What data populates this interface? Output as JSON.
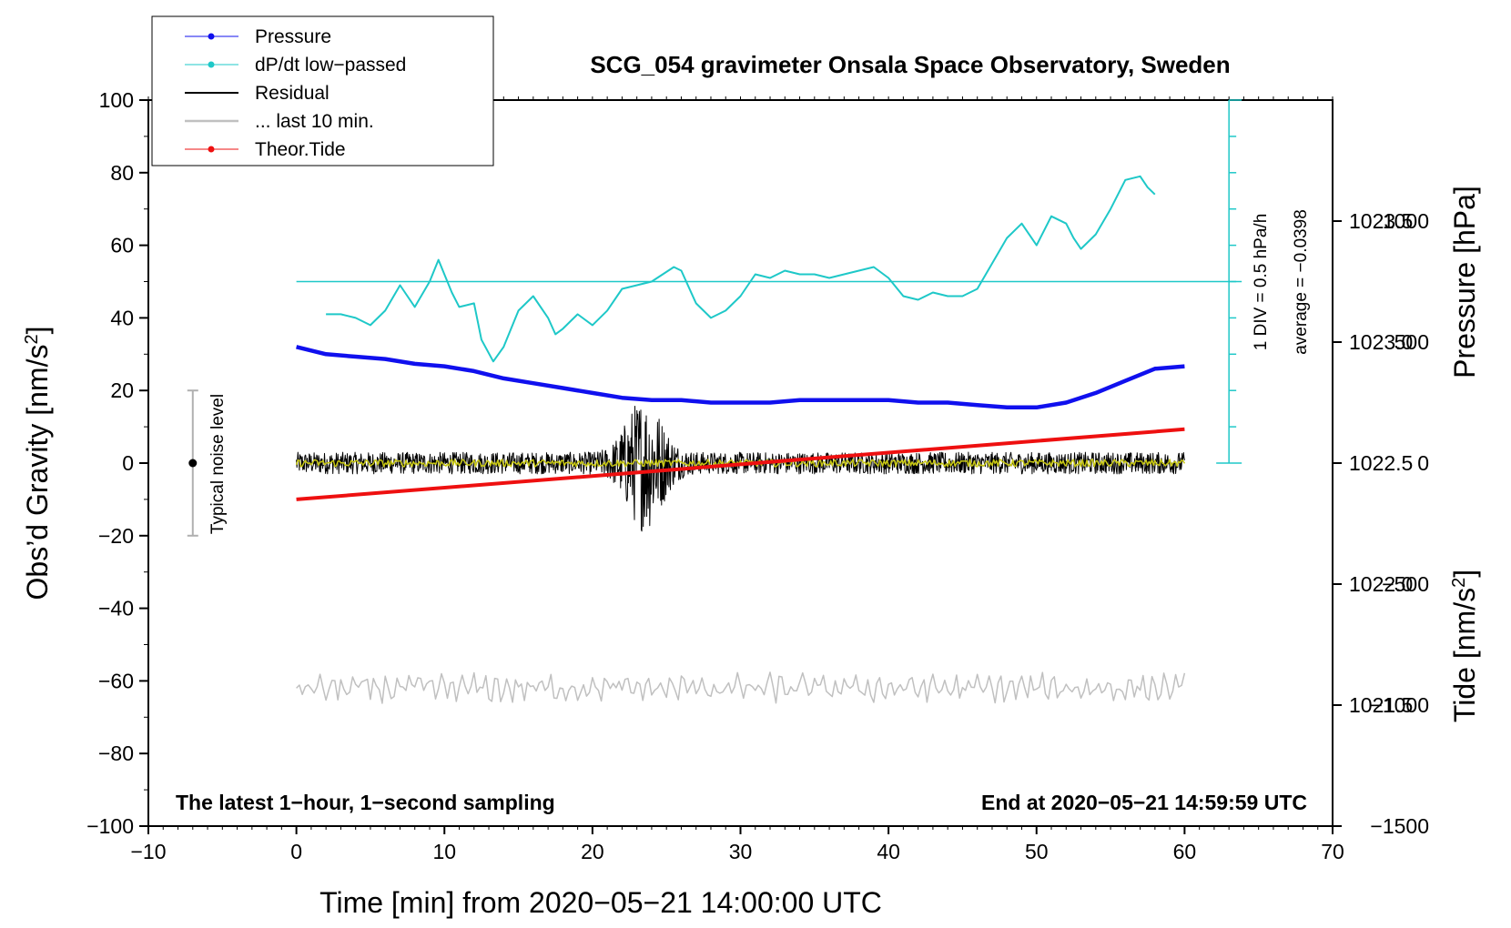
{
  "chart_data": {
    "type": "line",
    "title": "SCG_054 gravimeter Onsala Space Observatory, Sweden",
    "xlabel": "Time [min] from 2020−05−21 14:00:00 UTC",
    "ylabel_left_main": "Obs’d Gravity [nm/s",
    "ylabel_left_sup": "2",
    "ylabel_left_end": "]",
    "ylabel_right_pressure": "Pressure [hPa]",
    "ylabel_right_tide_main": "Tide [nm/s",
    "ylabel_right_tide_sup": "2",
    "ylabel_right_tide_end": "]",
    "xlim": [
      -10,
      70
    ],
    "ylim": [
      -100,
      100
    ],
    "pressure_lim": [
      1021.0,
      1024.0
    ],
    "tide_lim": [
      -1500,
      1500
    ],
    "x_ticks": [
      -10,
      0,
      10,
      20,
      30,
      40,
      50,
      60,
      70
    ],
    "x_tick_labels": [
      "−10",
      "0",
      "10",
      "20",
      "30",
      "40",
      "50",
      "60",
      "70"
    ],
    "y_ticks": [
      100,
      80,
      60,
      40,
      20,
      0,
      -20,
      -40,
      -60,
      -80,
      -100
    ],
    "y_tick_labels": [
      "100",
      "80",
      "60",
      "40",
      "20",
      "0",
      "−20",
      "−40",
      "−60",
      "−80",
      "−100"
    ],
    "pressure_ticks": [
      1023.5,
      1023.0,
      1022.5,
      1022.0,
      1021.5
    ],
    "pressure_tick_labels": [
      "1023.5",
      "1023.0",
      "1022.5",
      "1022.0",
      "1021.5"
    ],
    "tide_ticks": [
      1000,
      500,
      0,
      -500,
      -1000,
      -1500
    ],
    "tide_tick_labels": [
      "1000",
      "500",
      "0",
      "−500",
      "−1000",
      "−1500"
    ],
    "legend": [
      {
        "name": "Pressure",
        "color": "#1010ee",
        "marker": true
      },
      {
        "name": "dP/dt low−passed",
        "color": "#1ec8c8",
        "marker": true
      },
      {
        "name": "Residual",
        "color": "#000000",
        "marker": false
      },
      {
        "name": "... last 10 min.",
        "color": "#c0c0c0",
        "marker": false
      },
      {
        "name": "Theor.Tide",
        "color": "#ee1010",
        "marker": true
      }
    ],
    "annotations": {
      "bottom_left": "The latest 1−hour, 1−second sampling",
      "bottom_right": "End at 2020−05−21 14:59:59 UTC",
      "noise_label": "Typical noise level",
      "div_label": "1 DIV = 0.5 hPa/h",
      "avg_label": "average = −0.0398"
    },
    "noise_bar": {
      "x": -7,
      "center": 0,
      "half_range": 20
    },
    "dpdt_scale": {
      "x": 63,
      "y_min": 0,
      "y_max": 100,
      "divisions": 10,
      "baseline_y": 50
    },
    "series": [
      {
        "name": "Pressure",
        "axis": "pressure",
        "color": "#1010ee",
        "x": [
          0,
          2,
          4,
          6,
          8,
          10,
          12,
          14,
          16,
          18,
          20,
          22,
          24,
          26,
          28,
          30,
          32,
          34,
          36,
          38,
          40,
          42,
          44,
          46,
          48,
          50,
          52,
          54,
          56,
          58,
          60
        ],
        "y": [
          1022.98,
          1022.95,
          1022.94,
          1022.93,
          1022.91,
          1022.9,
          1022.88,
          1022.85,
          1022.83,
          1022.81,
          1022.79,
          1022.77,
          1022.76,
          1022.76,
          1022.75,
          1022.75,
          1022.75,
          1022.76,
          1022.76,
          1022.76,
          1022.76,
          1022.75,
          1022.75,
          1022.74,
          1022.73,
          1022.73,
          1022.75,
          1022.79,
          1022.84,
          1022.89,
          1022.9
        ]
      },
      {
        "name": "dP/dt low-passed",
        "axis": "left",
        "color": "#1ec8c8",
        "x": [
          2,
          3,
          4,
          5,
          6,
          7,
          8,
          9,
          9.6,
          10.5,
          11,
          12,
          12.5,
          13.3,
          14,
          15,
          16,
          17,
          17.5,
          18,
          19,
          20,
          21,
          22,
          24,
          25.5,
          26,
          27,
          28,
          29,
          30,
          31,
          32,
          33,
          34,
          35,
          36,
          37,
          38,
          39,
          40,
          41,
          42,
          43,
          44,
          45,
          46,
          47,
          48,
          49,
          49.5,
          50,
          51,
          52,
          52.5,
          53,
          54,
          55,
          56,
          57,
          57.5,
          58
        ],
        "y": [
          41,
          41,
          40,
          38,
          42,
          49,
          43,
          50,
          56,
          47,
          43,
          44,
          34,
          28,
          32,
          42,
          46,
          40,
          35.5,
          37,
          41,
          38,
          42,
          48,
          50,
          54,
          53,
          44,
          40,
          42,
          46,
          52,
          51,
          53,
          52,
          52,
          51,
          52,
          53,
          54,
          51,
          46,
          45,
          47,
          46,
          46,
          48,
          55,
          62,
          66,
          63,
          60,
          68,
          66,
          62,
          59,
          63,
          70,
          78,
          79,
          76,
          74
        ]
      },
      {
        "name": "Residual",
        "axis": "left",
        "color": "#000000",
        "x_start": 0,
        "x_end": 60,
        "center": 0,
        "noise_amp": 3,
        "burst_center": 23.5,
        "burst_amp": 16
      },
      {
        "name": "Residual smoothed",
        "axis": "left",
        "color": "#c8c814",
        "x_start": 0,
        "x_end": 60,
        "center": 0,
        "noise_amp": 1
      },
      {
        "name": "... last 10 min.",
        "axis": "left",
        "color": "#c0c0c0",
        "x_start": 0,
        "x_end": 60,
        "center": -62,
        "noise_amp": 3.5
      },
      {
        "name": "Theor.Tide",
        "axis": "tide",
        "color": "#ee1010",
        "x": [
          0,
          60
        ],
        "y": [
          -150,
          140
        ]
      }
    ]
  }
}
